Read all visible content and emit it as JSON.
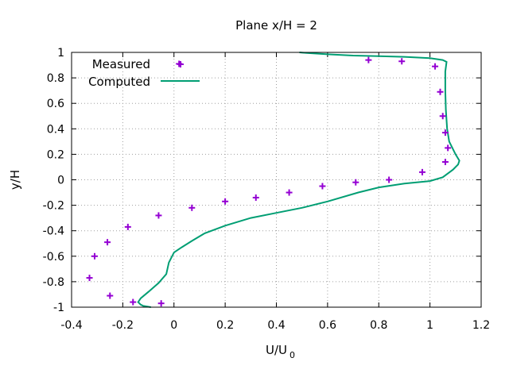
{
  "chart_data": {
    "type": "line",
    "title": "Plane x/H = 2",
    "xlabel_main": "U/U",
    "xlabel_sub": "0",
    "ylabel": "y/H",
    "xlim": [
      -0.4,
      1.2
    ],
    "ylim": [
      -1,
      1
    ],
    "xticks": [
      "-0.4",
      "-0.2",
      "0",
      "0.2",
      "0.4",
      "0.6",
      "0.8",
      "1",
      "1.2"
    ],
    "yticks": [
      "-1",
      "-0.8",
      "-0.6",
      "-0.4",
      "-0.2",
      "0",
      "0.2",
      "0.4",
      "0.6",
      "0.8",
      "1"
    ],
    "grid": true,
    "legend_position": "top-left",
    "series": [
      {
        "name": "Measured",
        "style": "points",
        "marker": "+",
        "color": "#9400d3",
        "points": [
          [
            0.02,
            0.91
          ],
          [
            0.76,
            0.94
          ],
          [
            0.89,
            0.93
          ],
          [
            1.02,
            0.89
          ],
          [
            1.04,
            0.69
          ],
          [
            1.05,
            0.5
          ],
          [
            1.06,
            0.37
          ],
          [
            1.07,
            0.25
          ],
          [
            1.06,
            0.14
          ],
          [
            0.97,
            0.06
          ],
          [
            0.84,
            0.0
          ],
          [
            0.71,
            -0.02
          ],
          [
            0.58,
            -0.05
          ],
          [
            0.45,
            -0.1
          ],
          [
            0.32,
            -0.14
          ],
          [
            0.2,
            -0.17
          ],
          [
            0.07,
            -0.22
          ],
          [
            -0.06,
            -0.28
          ],
          [
            -0.18,
            -0.37
          ],
          [
            -0.26,
            -0.49
          ],
          [
            -0.31,
            -0.6
          ],
          [
            -0.33,
            -0.77
          ],
          [
            -0.25,
            -0.91
          ],
          [
            -0.16,
            -0.96
          ],
          [
            -0.05,
            -0.97
          ]
        ]
      },
      {
        "name": "Computed",
        "style": "line",
        "color": "#009e73",
        "points": [
          [
            0.49,
            1.0
          ],
          [
            0.52,
            0.995
          ],
          [
            0.6,
            0.985
          ],
          [
            0.7,
            0.975
          ],
          [
            0.8,
            0.97
          ],
          [
            0.9,
            0.965
          ],
          [
            1.0,
            0.955
          ],
          [
            1.05,
            0.94
          ],
          [
            1.065,
            0.925
          ],
          [
            1.06,
            0.85
          ],
          [
            1.06,
            0.7
          ],
          [
            1.062,
            0.55
          ],
          [
            1.067,
            0.4
          ],
          [
            1.075,
            0.3
          ],
          [
            1.1,
            0.2
          ],
          [
            1.115,
            0.15
          ],
          [
            1.11,
            0.12
          ],
          [
            1.09,
            0.08
          ],
          [
            1.05,
            0.02
          ],
          [
            1.0,
            -0.01
          ],
          [
            0.9,
            -0.03
          ],
          [
            0.8,
            -0.06
          ],
          [
            0.72,
            -0.1
          ],
          [
            0.6,
            -0.17
          ],
          [
            0.5,
            -0.22
          ],
          [
            0.4,
            -0.26
          ],
          [
            0.3,
            -0.3
          ],
          [
            0.2,
            -0.36
          ],
          [
            0.12,
            -0.42
          ],
          [
            0.07,
            -0.48
          ],
          [
            0.03,
            -0.53
          ],
          [
            0.0,
            -0.57
          ],
          [
            -0.02,
            -0.65
          ],
          [
            -0.03,
            -0.74
          ],
          [
            -0.06,
            -0.81
          ],
          [
            -0.1,
            -0.88
          ],
          [
            -0.13,
            -0.93
          ],
          [
            -0.14,
            -0.96
          ],
          [
            -0.13,
            -0.98
          ],
          [
            -0.12,
            -0.99
          ],
          [
            -0.09,
            -1.0
          ]
        ]
      }
    ]
  }
}
